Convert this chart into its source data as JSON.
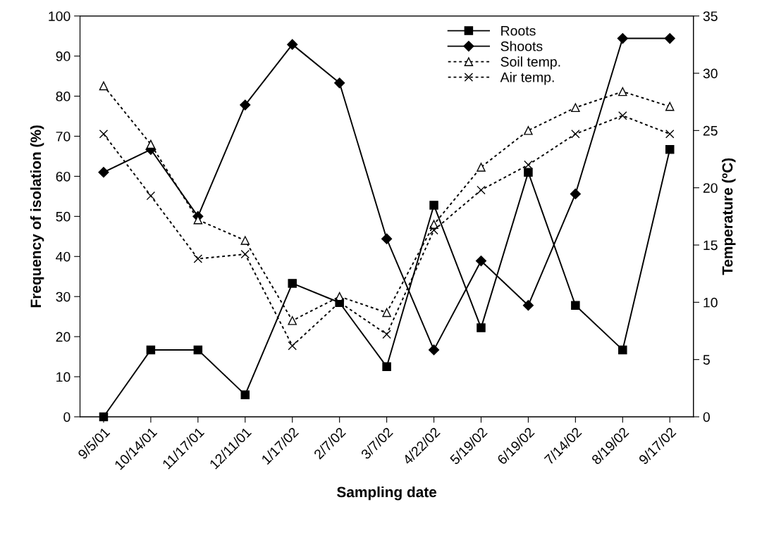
{
  "chart_data": {
    "type": "line",
    "xlabel": "Sampling date",
    "ylabel": "Frequency of isolation (%)",
    "y2label": "Temperature (ºC)",
    "categories": [
      "9/5/01",
      "10/14/01",
      "11/17/01",
      "12/11/01",
      "1/17/02",
      "2/7/02",
      "3/7/02",
      "4/22/02",
      "5/19/02",
      "6/19/02",
      "7/14/02",
      "8/19/02",
      "9/17/02"
    ],
    "series": [
      {
        "name": "Roots",
        "color": "#000000",
        "marker": "square",
        "line_style": "solid",
        "values": [
          0,
          16.7,
          16.7,
          5.5,
          33.3,
          28.5,
          12.5,
          52.8,
          22.2,
          61,
          27.8,
          16.7,
          66.7
        ]
      },
      {
        "name": "Shoots",
        "color": "#000000",
        "marker": "diamond",
        "line_style": "solid",
        "values": [
          61,
          66.7,
          50,
          77.8,
          92.9,
          83.3,
          44.4,
          16.7,
          38.9,
          27.8,
          55.6,
          94.4,
          94.4
        ]
      },
      {
        "name": "Soil temp.",
        "color": "#000000",
        "marker": "triangle",
        "line_style": "dotted",
        "axis": "y2",
        "values": [
          28.9,
          23.8,
          17.2,
          15.4,
          8.4,
          10.5,
          9.1,
          16.8,
          21.8,
          25.0,
          27.0,
          28.4,
          27.1
        ]
      },
      {
        "name": "Air temp.",
        "color": "#000000",
        "marker": "cross",
        "line_style": "dotted",
        "axis": "y2",
        "values": [
          24.7,
          19.3,
          13.8,
          14.2,
          6.2,
          10.0,
          7.2,
          16.3,
          19.8,
          22.0,
          24.7,
          26.3,
          24.7
        ]
      }
    ],
    "ylim": [
      0,
      100
    ],
    "yticks": [
      0,
      10,
      20,
      30,
      40,
      50,
      60,
      70,
      80,
      90,
      100
    ],
    "y2lim": [
      0,
      35
    ],
    "y2ticks": [
      0,
      5,
      10,
      15,
      20,
      25,
      30,
      35
    ],
    "grid": false,
    "legend": "top right"
  }
}
